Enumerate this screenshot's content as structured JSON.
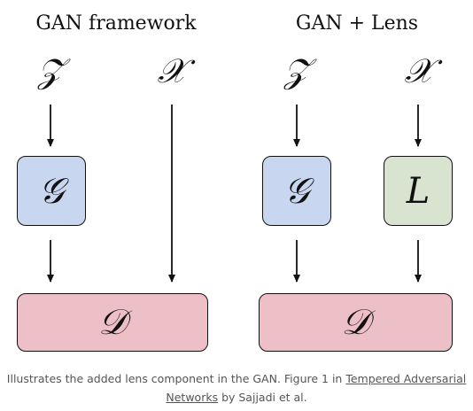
{
  "left_panel": {
    "title": "GAN framework",
    "latent_symbol": "𝒵",
    "data_symbol": "𝒳",
    "generator_symbol": "𝒢",
    "discriminator_symbol": "𝒟"
  },
  "right_panel": {
    "title": "GAN + Lens",
    "latent_symbol": "𝒵",
    "data_symbol": "𝒳",
    "generator_symbol": "𝒢",
    "lens_symbol": "L",
    "discriminator_symbol": "𝒟"
  },
  "colors": {
    "generator_fill": "#c9d6ef",
    "lens_fill": "#d8e4cf",
    "discriminator_fill": "#edbfc6"
  },
  "caption": {
    "text_before": "Illustrates the added lens component in the GAN. Figure 1 in ",
    "link_text": "Tempered Adversarial Networks",
    "text_after": " by Sajjadi et al."
  }
}
